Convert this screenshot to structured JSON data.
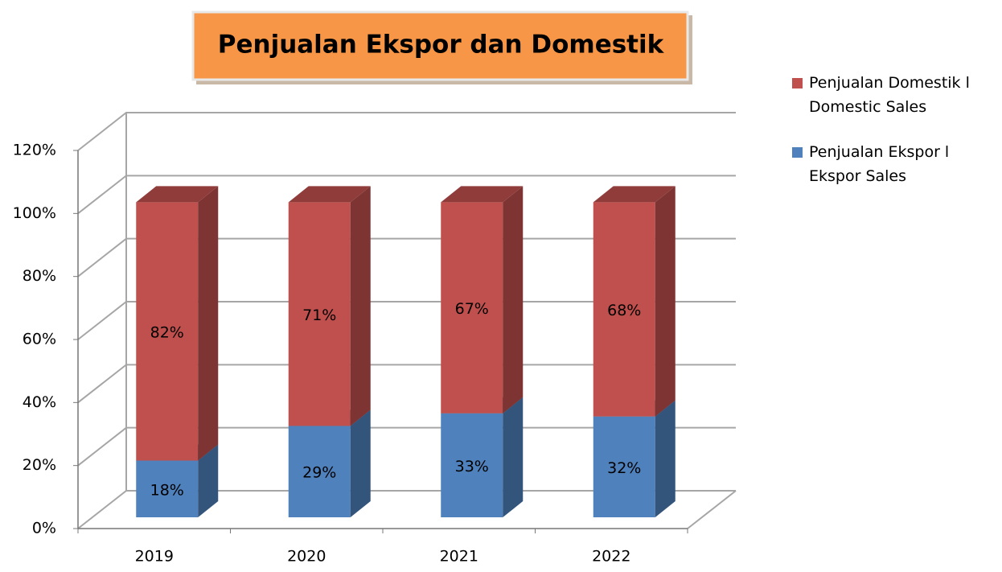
{
  "chart_data": {
    "type": "bar3d_stacked",
    "title": "Penjualan Ekspor dan Domestik",
    "categories": [
      "2019",
      "2020",
      "2021",
      "2022"
    ],
    "series": [
      {
        "name": "Penjualan Ekspor l Ekspor Sales",
        "color": "#4f81bd",
        "values": [
          18,
          29,
          33,
          32
        ],
        "value_labels": [
          "18%",
          "29%",
          "33%",
          "32%"
        ]
      },
      {
        "name": "Penjualan Domestik l Domestic Sales",
        "color": "#c0504d",
        "values": [
          82,
          71,
          67,
          68
        ],
        "value_labels": [
          "82%",
          "71%",
          "67%",
          "68%"
        ]
      }
    ],
    "ylim": [
      0,
      120
    ],
    "yticks": [
      {
        "value": 0,
        "label": "0%"
      },
      {
        "value": 20,
        "label": "20%"
      },
      {
        "value": 40,
        "label": "40%"
      },
      {
        "value": 60,
        "label": "60%"
      },
      {
        "value": 80,
        "label": "80%"
      },
      {
        "value": 100,
        "label": "100%"
      },
      {
        "value": 120,
        "label": "120%"
      }
    ],
    "grid": true,
    "legend": "right"
  }
}
